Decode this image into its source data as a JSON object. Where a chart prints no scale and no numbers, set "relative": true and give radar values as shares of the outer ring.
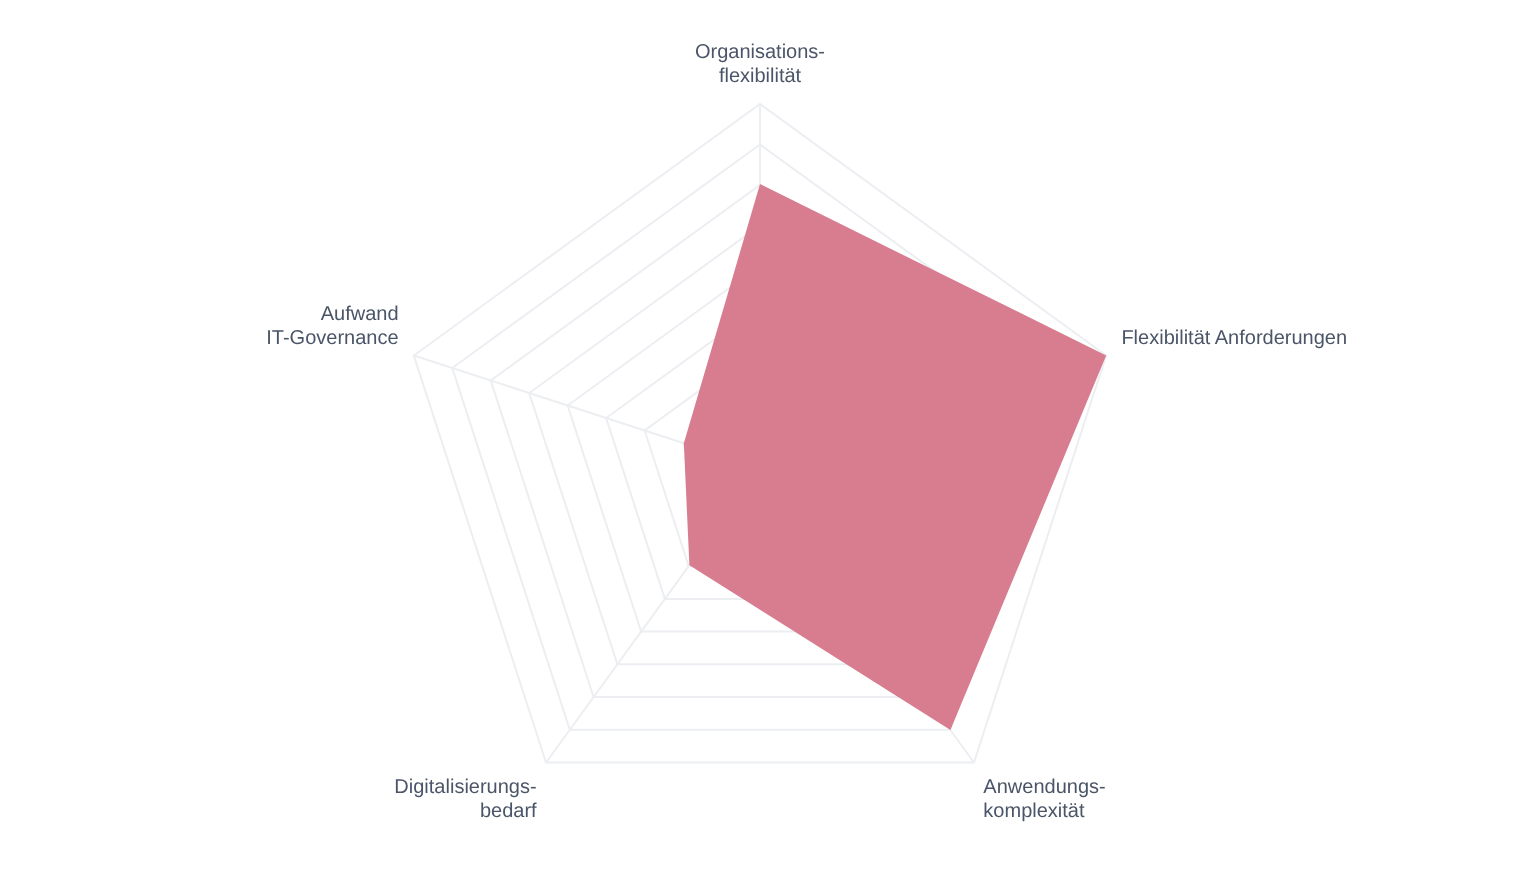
{
  "chart_data": {
    "type": "radar",
    "relative": true,
    "categories": [
      "Organisations-\nflexibilität",
      "Flexibilität Anforderungen",
      "Anwendungs-\nkomplexität",
      "Digitalisierungs-\nbedarf",
      "Aufwand\nIT-Governance"
    ],
    "series": [
      {
        "color": "#d77d8f",
        "values": [
          0.78,
          1,
          0.89,
          0.33,
          0.22
        ]
      }
    ],
    "grid": true,
    "legend": false
  }
}
